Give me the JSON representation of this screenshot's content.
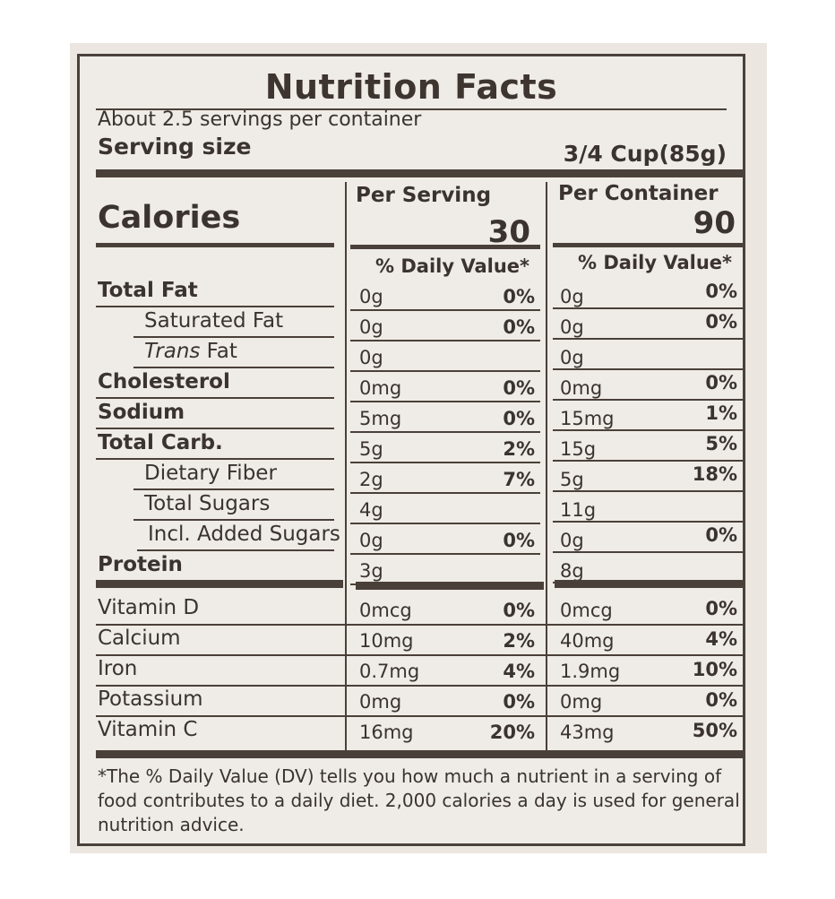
{
  "title": "Nutrition Facts",
  "servings": "About 2.5 servings per container",
  "serving_size_label": "Serving size",
  "serving_size_value": "3/4 Cup(85g)",
  "calories_label": "Calories",
  "per_serving_label": "Per Serving",
  "per_container_label": "Per Container",
  "calories_per_serving": "30",
  "calories_per_container": "90",
  "daily_value_header": "% Daily Value*",
  "nutrients": [
    {
      "name": "Total Fat",
      "style": "b",
      "indent": 0,
      "serving": "0g",
      "serving_dv": "0%",
      "container": "0g",
      "container_dv": "0%"
    },
    {
      "name": "Saturated Fat",
      "style": "",
      "indent": 1,
      "serving": "0g",
      "serving_dv": "0%",
      "container": "0g",
      "container_dv": "0%"
    },
    {
      "name_italic": "Trans",
      "name": " Fat",
      "style": "",
      "indent": 1,
      "serving": "0g",
      "serving_dv": "",
      "container": "0g",
      "container_dv": ""
    },
    {
      "name": "Cholesterol",
      "style": "b",
      "indent": 0,
      "serving": "0mg",
      "serving_dv": "0%",
      "container": "0mg",
      "container_dv": "0%"
    },
    {
      "name": "Sodium",
      "style": "b",
      "indent": 0,
      "serving": "5mg",
      "serving_dv": "0%",
      "container": "15mg",
      "container_dv": "1%"
    },
    {
      "name": "Total Carb.",
      "style": "b",
      "indent": 0,
      "serving": "5g",
      "serving_dv": "2%",
      "container": "15g",
      "container_dv": "5%"
    },
    {
      "name": "Dietary Fiber",
      "style": "",
      "indent": 1,
      "serving": "2g",
      "serving_dv": "7%",
      "container": "5g",
      "container_dv": "18%"
    },
    {
      "name": "Total Sugars",
      "style": "",
      "indent": 1,
      "serving": "4g",
      "serving_dv": "",
      "container": "11g",
      "container_dv": ""
    },
    {
      "name": "Incl. Added Sugars",
      "style": "",
      "indent": 2,
      "serving": "0g",
      "serving_dv": "0%",
      "container": "0g",
      "container_dv": "0%"
    },
    {
      "name": "Protein",
      "style": "b",
      "indent": 0,
      "serving": "3g",
      "serving_dv": "",
      "container": "8g",
      "container_dv": ""
    }
  ],
  "vitamins": [
    {
      "name": "Vitamin D",
      "serving": "0mcg",
      "serving_dv": "0%",
      "container": "0mcg",
      "container_dv": "0%"
    },
    {
      "name": "Calcium",
      "serving": "10mg",
      "serving_dv": "2%",
      "container": "40mg",
      "container_dv": "4%"
    },
    {
      "name": "Iron",
      "serving": "0.7mg",
      "serving_dv": "4%",
      "container": "1.9mg",
      "container_dv": "10%"
    },
    {
      "name": "Potassium",
      "serving": "0mg",
      "serving_dv": "0%",
      "container": "0mg",
      "container_dv": "0%"
    },
    {
      "name": "Vitamin C",
      "serving": "16mg",
      "serving_dv": "20%",
      "container": "43mg",
      "container_dv": "50%"
    }
  ],
  "footnote": "*The % Daily Value (DV) tells you how much a nutrient in a serving of food contributes to a daily diet. 2,000 calories a day is used for general nutrition advice."
}
